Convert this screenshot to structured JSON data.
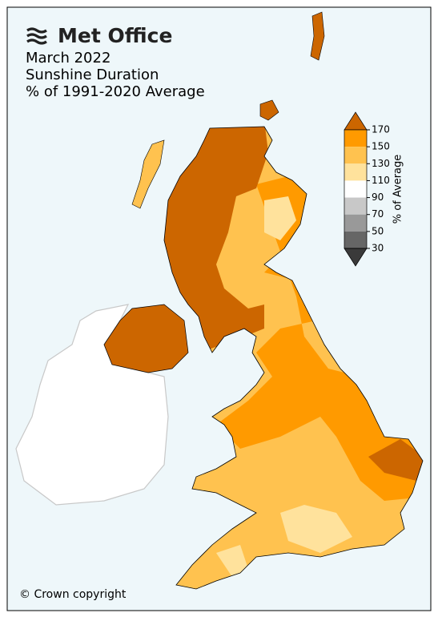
{
  "header": {
    "logo": "Met Office",
    "title_lines": [
      "March 2022",
      "Sunshine Duration",
      "% of 1991-2020 Average"
    ]
  },
  "legend": {
    "label": "% of Average",
    "ticks": [
      170,
      150,
      130,
      110,
      90,
      70,
      50,
      30
    ],
    "colors": [
      "#cc6600",
      "#ff9a00",
      "#ffc24f",
      "#ffe29c",
      "#ffffff",
      "#c8c8c8",
      "#999999",
      "#666666",
      "#3a3a3a"
    ]
  },
  "footer": {
    "copyright": "© Crown copyright"
  }
}
